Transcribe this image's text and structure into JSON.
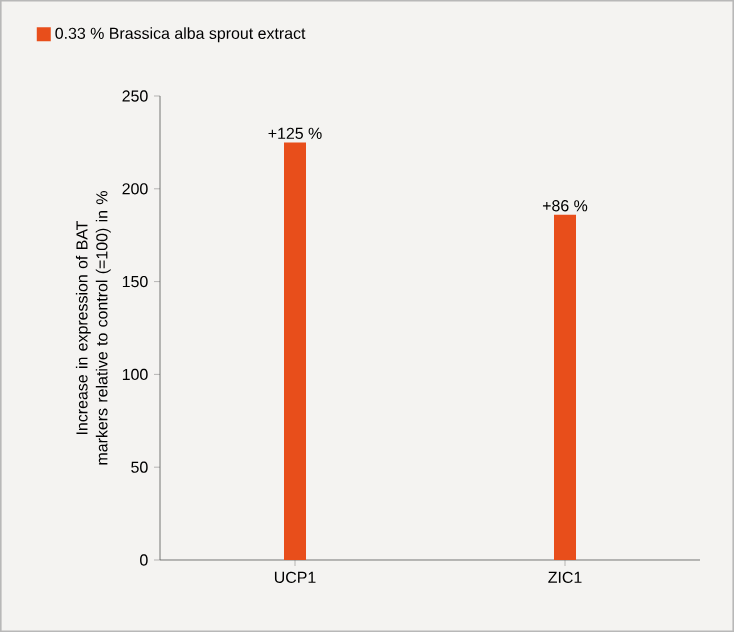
{
  "chart_data": {
    "type": "bar",
    "categories": [
      "UCP1",
      "ZIC1"
    ],
    "series": [
      {
        "name": "0.33 % Brassica alba sprout extract",
        "color": "#e84e1b",
        "values": [
          225,
          186
        ]
      }
    ],
    "annotations": [
      {
        "text": "+125 %",
        "x": "UCP1",
        "y": 225
      },
      {
        "text": "+86 %",
        "x": "ZIC1",
        "y": 186
      }
    ],
    "ylabel": "Increase in expression of BAT markers relative to control (=100) in %",
    "ylim": [
      0,
      250
    ],
    "yticks": [
      0,
      50,
      100,
      150,
      200,
      250
    ],
    "legend": "top left",
    "grid": false
  }
}
